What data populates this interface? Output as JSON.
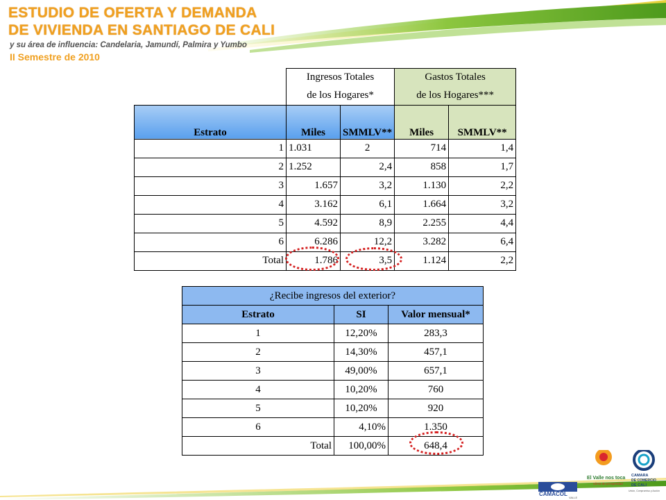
{
  "header": {
    "title_line1": "ESTUDIO DE OFERTA Y DEMANDA",
    "title_line2": "DE VIVIENDA EN SANTIAGO DE CALI",
    "subtitle": "y su área de influencia: Candelaria, Jamundí, Palmira y Yumbo",
    "semester": "II Semestre de 2010"
  },
  "table1": {
    "group1_line1": "Ingresos Totales",
    "group1_line2": "de los Hogares*",
    "group2_line1": "Gastos Totales",
    "group2_line2": "de los Hogares***",
    "col_estrato": "Estrato",
    "col_miles1": "Miles",
    "col_smmlv1": "SMMLV**",
    "col_miles2": "Miles",
    "col_smmlv2": "SMMLV**",
    "rows": [
      [
        "1",
        "1.031",
        "2",
        "714",
        "1,4"
      ],
      [
        "2",
        "1.252",
        "2,4",
        "858",
        "1,7"
      ],
      [
        "3",
        "1.657",
        "3,2",
        "1.130",
        "2,2"
      ],
      [
        "4",
        "3.162",
        "6,1",
        "1.664",
        "3,2"
      ],
      [
        "5",
        "4.592",
        "8,9",
        "2.255",
        "4,4"
      ],
      [
        "6",
        "6.286",
        "12,2",
        "3.282",
        "6,4"
      ],
      [
        "Total",
        "1.786",
        "3,5",
        "1.124",
        "2,2"
      ]
    ]
  },
  "table2": {
    "title": "¿Recibe ingresos del exterior?",
    "col_estrato": "Estrato",
    "col_si": "SI",
    "col_valor": "Valor mensual*",
    "rows": [
      [
        "1",
        "12,20%",
        "283,3"
      ],
      [
        "2",
        "14,30%",
        "457,1"
      ],
      [
        "3",
        "49,00%",
        "657,1"
      ],
      [
        "4",
        "10,20%",
        "760"
      ],
      [
        "5",
        "10,20%",
        "920"
      ],
      [
        "6",
        "4,10%",
        "1.350"
      ],
      [
        "Total",
        "100,00%",
        "648,4"
      ]
    ]
  },
  "logos": {
    "camacol": "CAMACOL",
    "camacol_sub": "VALLE",
    "valle": "El Valle nos toca",
    "valle_sub": "Clima de prosperidad",
    "camara_line1": "CAMARA",
    "camara_line2": "DE COMERCIO",
    "camara_line3": "DE CALI",
    "camara_sub": "Unión, Compromiso y Acción"
  },
  "colors": {
    "title_orange": "#f0a020",
    "header_green": "#8cc63f",
    "blue_header": "#8db9f0",
    "green_header": "#d7e4bd",
    "highlight_red": "#d42020"
  }
}
